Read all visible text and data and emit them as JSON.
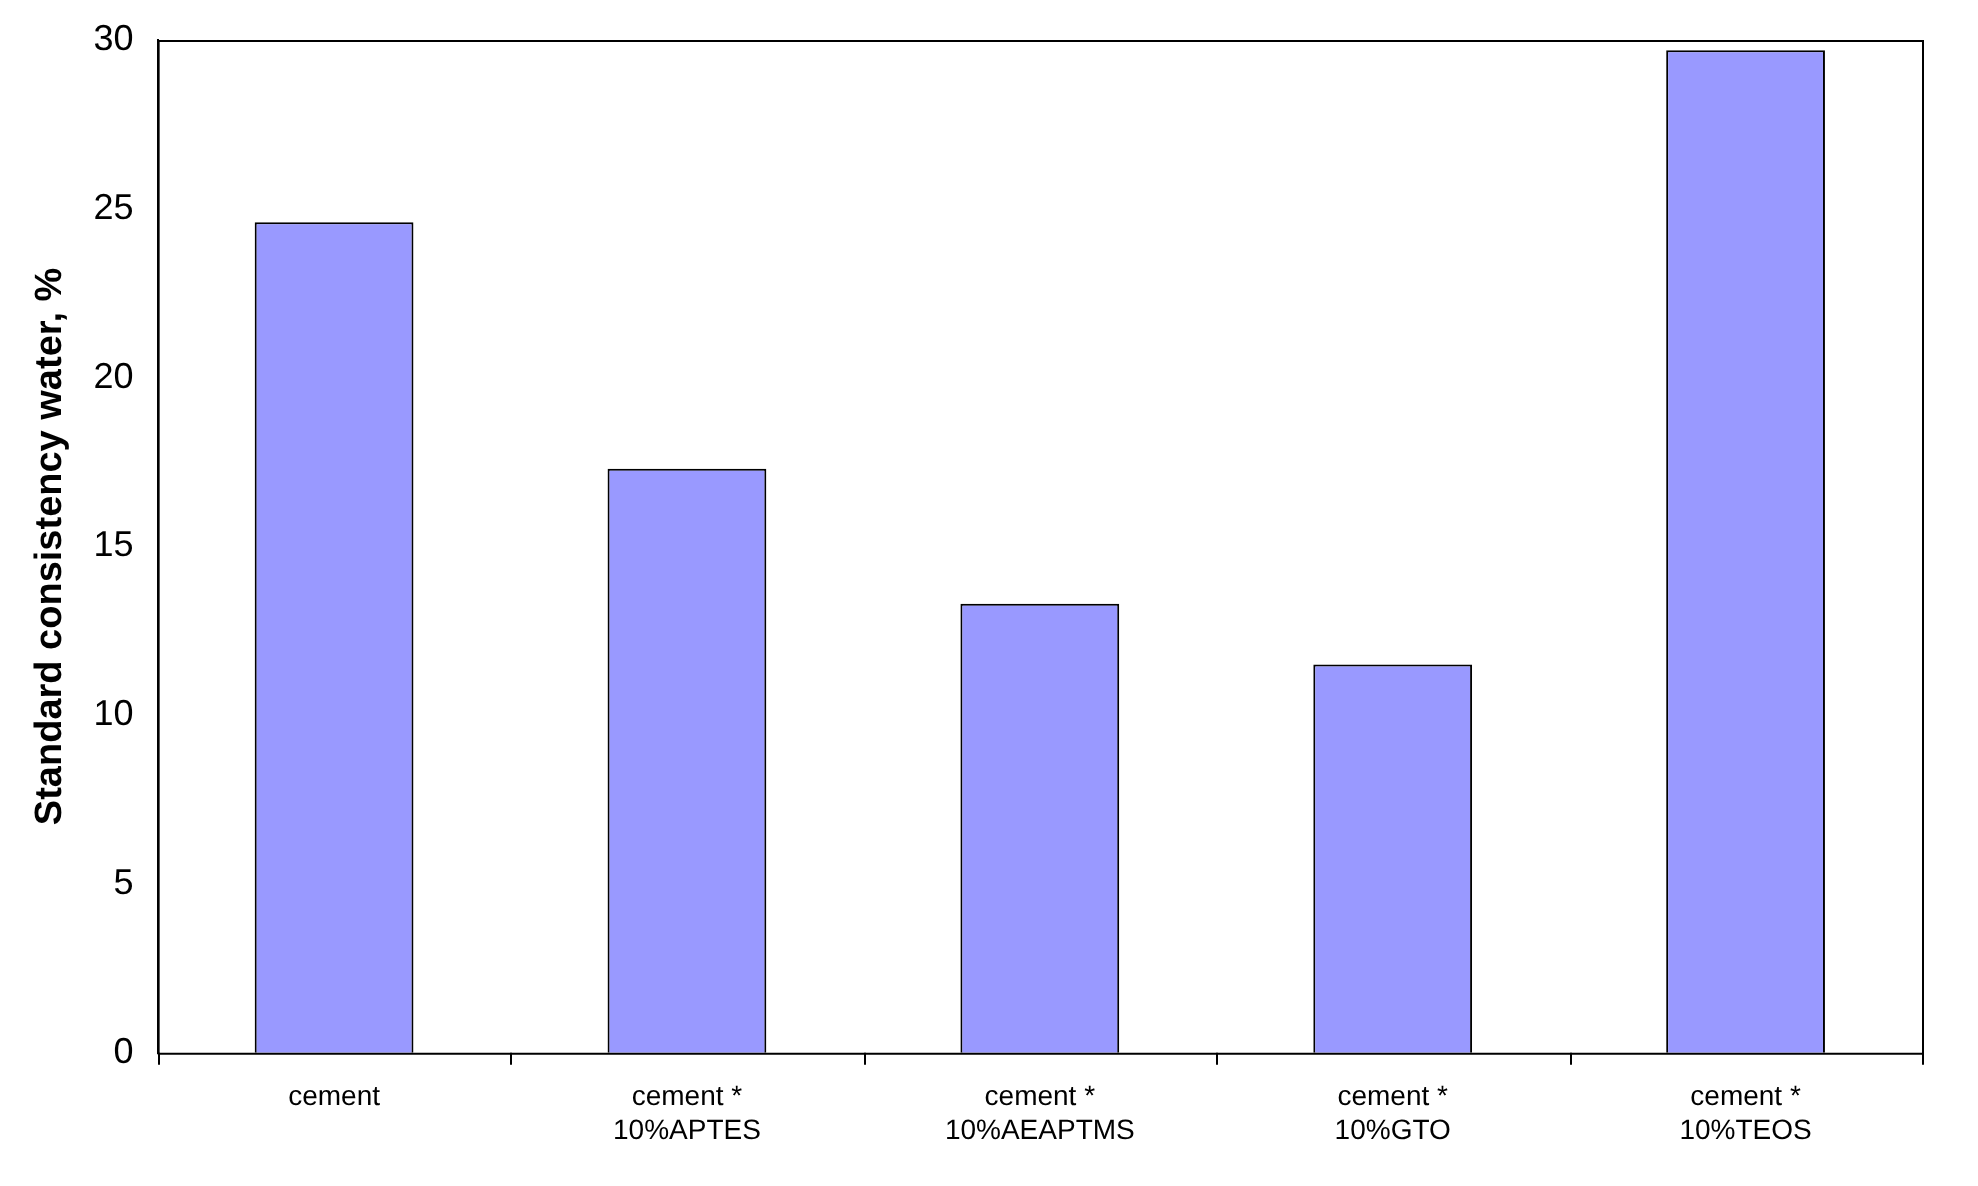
{
  "chart_data": {
    "type": "bar",
    "ylabel": "Standard consistency water, %",
    "categories": [
      "cement",
      "cement *\n10%APTES",
      "cement *\n10%AEAPTMS",
      "cement *\n10%GTO",
      "cement *\n10%TEOS"
    ],
    "values": [
      24.6,
      17.3,
      13.3,
      11.5,
      29.7
    ],
    "color": "#9999ff",
    "ylim": [
      0,
      30
    ],
    "yticks": [
      0,
      5,
      10,
      15,
      20,
      25,
      30
    ],
    "grid": false,
    "legend": false
  }
}
